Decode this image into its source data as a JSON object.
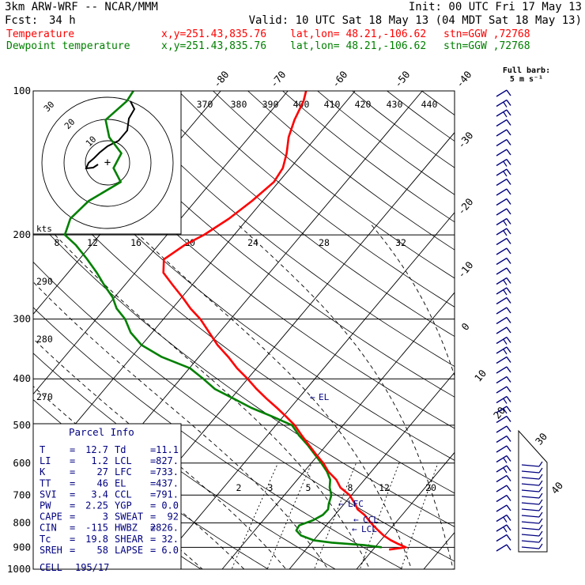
{
  "header": {
    "model": "3km ARW-WRF -- NCAR/MMM",
    "init": "Init: 00 UTC Fri 17 May 13",
    "fcst_label": "Fcst:",
    "fcst_value": "34 h",
    "valid": "Valid: 10 UTC Sat 18 May 13 (04 MDT Sat 18 May 13)",
    "temp_line": {
      "name": "Temperature",
      "xy": "x,y=251.43,835.76",
      "latlon": "lat,lon= 48.21,-106.62",
      "stn": "stn=GGW ,72768",
      "color": "#ff0000"
    },
    "dew_line": {
      "name": "Dewpoint temperature",
      "xy": "x,y=251.43,835.76",
      "latlon": "lat,lon= 48.21,-106.62",
      "stn": "stn=GGW ,72768",
      "color": "#008000"
    }
  },
  "barb_legend": {
    "line1": "Full barb:",
    "line2": "5 m s⁻¹"
  },
  "hodograph": {
    "units": "kts",
    "rings": [
      "10",
      "20",
      "30"
    ]
  },
  "parcel_info": {
    "title": "Parcel Info",
    "rows": [
      {
        "l1": "T",
        "v1": "12.7",
        "l2": "Td",
        "v2": "11.1"
      },
      {
        "l1": "LI",
        "v1": "1.2",
        "l2": "LCL",
        "v2": "827."
      },
      {
        "l1": "K",
        "v1": "27",
        "l2": "LFC",
        "v2": "733."
      },
      {
        "l1": "TT",
        "v1": "46",
        "l2": "EL",
        "v2": "437."
      },
      {
        "l1": "SVI",
        "v1": "3.4",
        "l2": "CCL",
        "v2": "791."
      },
      {
        "l1": "PW",
        "v1": "2.25",
        "l2": "YGP",
        "v2": "0.0"
      },
      {
        "l1": "CAPE",
        "v1": "3",
        "l2": "SWEAT",
        "v2": "92"
      },
      {
        "l1": "CIN",
        "v1": "-115",
        "l2": "HWBZ",
        "v2": "2826."
      },
      {
        "l1": "Tc",
        "v1": "19.8",
        "l2": "SHEAR",
        "v2": "32."
      },
      {
        "l1": "SREH",
        "v1": "58",
        "l2": "LAPSE",
        "v2": "6.0"
      }
    ],
    "cell_label": "CELL",
    "cell_value": "195/17"
  },
  "chart_data": {
    "type": "line",
    "subtype": "skew-T log-p",
    "y_axis": {
      "quantity": "pressure (hPa)",
      "scale": "log",
      "range": [
        1000,
        100
      ],
      "ticks": [
        "100",
        "200",
        "300",
        "400",
        "500",
        "600",
        "700",
        "800",
        "900",
        "1000"
      ]
    },
    "x_axis": {
      "quantity": "temperature (°C), skewed",
      "ticks": [
        "-80",
        "-70",
        "-60",
        "-50",
        "-40",
        "-30",
        "-20",
        "-10",
        "0",
        "10",
        "20",
        "30",
        "40"
      ]
    },
    "theta_e_labels": [
      "370",
      "380",
      "390",
      "400",
      "410",
      "420",
      "430",
      "440"
    ],
    "mixing_ratio_labels_upper": [
      "8",
      "12",
      "16",
      "20",
      "24",
      "28",
      "32"
    ],
    "mixing_ratio_labels_lower": [
      "2",
      "3",
      "5",
      "8",
      "12",
      "20"
    ],
    "dry_adiabat_labels": [
      "290",
      "280",
      "270"
    ],
    "levels": {
      "el": "EL",
      "lfc": "LFC",
      "ccl": "CCL",
      "lcl": "LCL"
    },
    "series": [
      {
        "name": "Temperature",
        "color": "#ff0000",
        "p": [
          910,
          900,
          885,
          870,
          850,
          830,
          810,
          790,
          770,
          750,
          730,
          700,
          675,
          650,
          625,
          600,
          575,
          550,
          525,
          500,
          480,
          460,
          440,
          420,
          400,
          380,
          360,
          340,
          320,
          300,
          285,
          270,
          255,
          240,
          225,
          210,
          200,
          185,
          170,
          155,
          145,
          135,
          125,
          115,
          105,
          100
        ],
        "t": [
          12.4,
          14.6,
          13.0,
          11.5,
          9.8,
          8.4,
          7.0,
          5.7,
          4.4,
          2.7,
          1.6,
          -0.3,
          -2.6,
          -4.2,
          -6.4,
          -8.2,
          -10.4,
          -12.6,
          -14.9,
          -17.2,
          -19.5,
          -22.0,
          -24.7,
          -27.4,
          -30.0,
          -32.9,
          -35.6,
          -38.7,
          -41.5,
          -44.5,
          -47.3,
          -49.9,
          -52.8,
          -55.8,
          -57.4,
          -56.1,
          -54.5,
          -52.8,
          -51.6,
          -50.7,
          -51.1,
          -52.4,
          -54.1,
          -55.4,
          -56.4,
          -57.3
        ]
      },
      {
        "name": "Dewpoint temperature",
        "color": "#008000",
        "p": [
          900,
          890,
          880,
          870,
          850,
          830,
          810,
          790,
          770,
          750,
          730,
          700,
          675,
          650,
          625,
          600,
          575,
          550,
          525,
          500,
          480,
          460,
          440,
          420,
          400,
          380,
          360,
          340,
          320,
          300,
          285,
          270,
          255,
          240,
          225,
          210,
          200,
          185,
          170,
          155,
          145,
          135,
          125,
          115,
          105,
          100
        ],
        "t": [
          11.0,
          8.0,
          3.0,
          0.0,
          -2.5,
          -3.8,
          -4.0,
          -2.6,
          -1.8,
          -1.7,
          -2.3,
          -3.0,
          -4.2,
          -5.1,
          -6.6,
          -8.5,
          -10.6,
          -12.8,
          -15.3,
          -17.6,
          -21.5,
          -25.8,
          -29.6,
          -33.6,
          -36.6,
          -39.9,
          -45.5,
          -50.0,
          -53.2,
          -55.7,
          -58.3,
          -60.3,
          -63.0,
          -65.7,
          -68.8,
          -72.3,
          -75.2,
          -76.4,
          -75.9,
          -73.5,
          -76.3,
          -77.0,
          -80.8,
          -83.5,
          -82.7,
          -83.0
        ]
      }
    ]
  }
}
